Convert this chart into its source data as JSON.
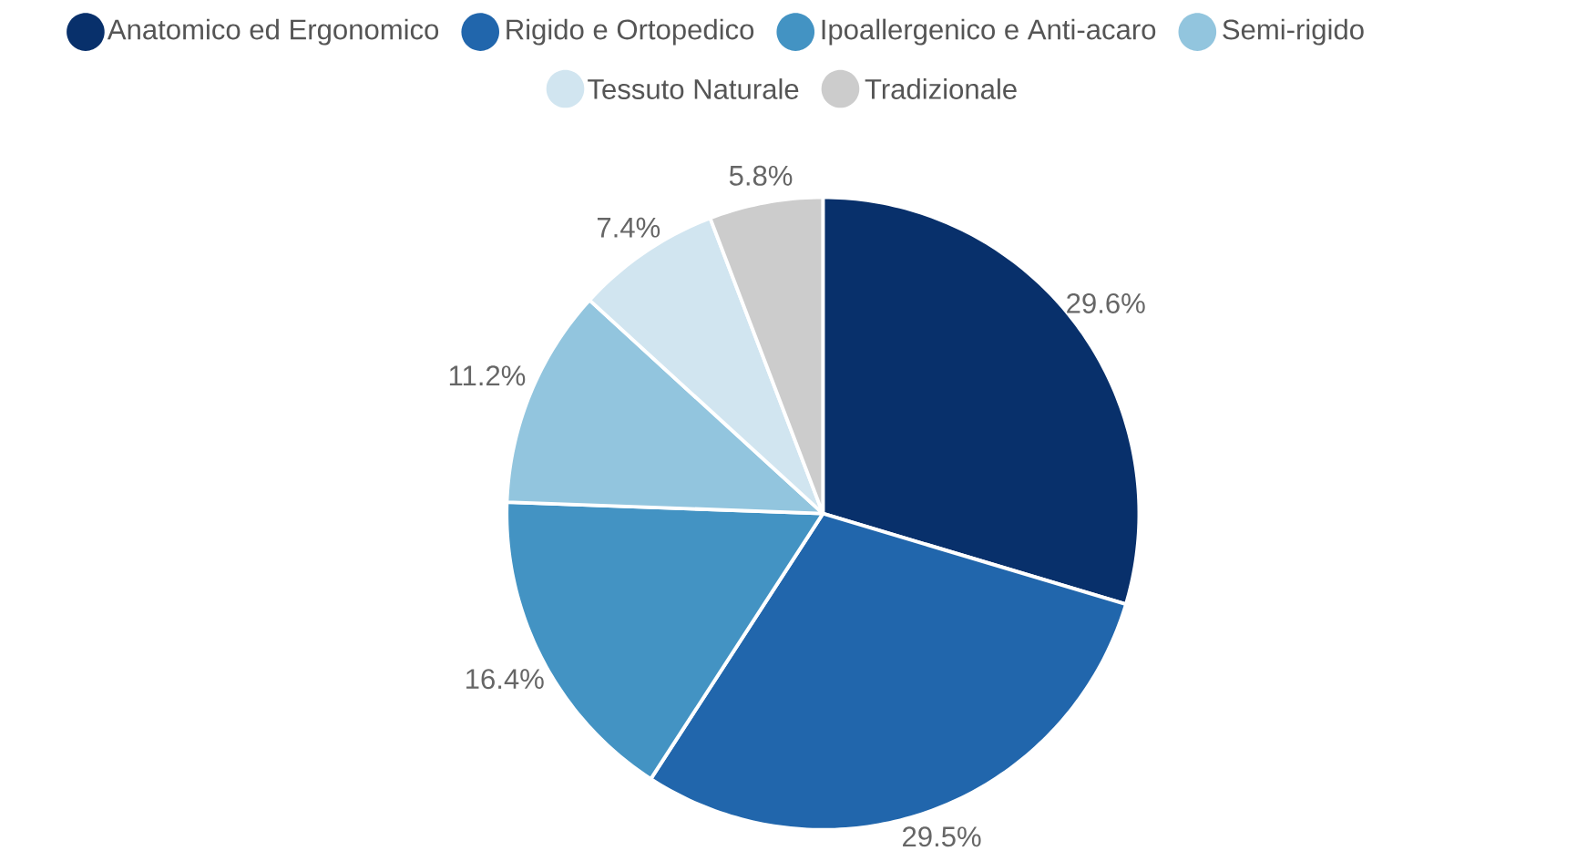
{
  "chart_data": {
    "type": "pie",
    "categories": [
      "Anatomico ed Ergonomico",
      "Rigido e Ortopedico",
      "Ipoallergenico e Anti-acaro",
      "Semi-rigido",
      "Tessuto Naturale",
      "Tradizionale"
    ],
    "values": [
      29.6,
      29.5,
      16.4,
      11.2,
      7.4,
      5.8
    ],
    "value_labels": [
      "29.6%",
      "29.5%",
      "16.4%",
      "11.2%",
      "7.4%",
      "5.8%"
    ],
    "colors": [
      "#08306b",
      "#2166ac",
      "#4393c3",
      "#92c5de",
      "#d1e5f0",
      "#cccccc"
    ],
    "legend": "top"
  }
}
